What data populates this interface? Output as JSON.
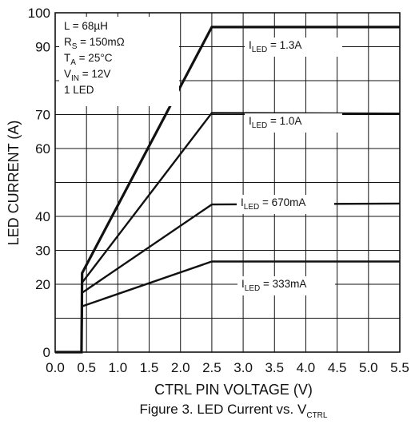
{
  "chart_data": {
    "type": "line",
    "title": "",
    "caption": {
      "main": "Figure 3. LED Current vs. V",
      "sub": "CTRL"
    },
    "xlabel": "CTRL PIN VOLTAGE (V)",
    "ylabel": "LED CURRENT (A)",
    "xlim": [
      0,
      5.5
    ],
    "ylim": [
      0,
      100
    ],
    "xticks": [
      0.0,
      0.5,
      1.0,
      1.5,
      2.0,
      2.5,
      3.0,
      3.5,
      4.0,
      4.5,
      5.0,
      5.5
    ],
    "yticks": [
      0,
      10,
      20,
      30,
      40,
      50,
      60,
      70,
      80,
      90,
      100
    ],
    "xtick_labels": [
      "0.0",
      "0.5",
      "1.0",
      "1.5",
      "2.0",
      "2.5",
      "3.0",
      "3.5",
      "4.0",
      "4.5",
      "5.0",
      "5.5"
    ],
    "ytick_labels": [
      "0",
      "",
      "20",
      "30",
      "40",
      "",
      "60",
      "70",
      "",
      "90",
      "100"
    ],
    "grid": true,
    "conditions": [
      {
        "main": "L = 68µH",
        "sub": "",
        "rest": ""
      },
      {
        "main": "R",
        "sub": "S",
        "rest": " = 150mΩ"
      },
      {
        "main": "T",
        "sub": "A",
        "rest": " = 25°C"
      },
      {
        "main": "V",
        "sub": "IN",
        "rest": " = 12V"
      },
      {
        "main": "1 LED",
        "sub": "",
        "rest": ""
      }
    ],
    "series": [
      {
        "main": "I",
        "sub": "LED",
        "rest": " = 1.3A",
        "x": [
          0,
          0.42,
          0.43,
          2.5,
          5.5
        ],
        "y": [
          0,
          0,
          23.3,
          95.8,
          95.8
        ]
      },
      {
        "main": "I",
        "sub": "LED",
        "rest": " = 1.0A",
        "x": [
          0,
          0.42,
          0.43,
          2.5,
          5.5
        ],
        "y": [
          0,
          0,
          20.5,
          70.5,
          70.3
        ]
      },
      {
        "main": "I",
        "sub": "LED",
        "rest": " = 670mA",
        "x": [
          0,
          0.42,
          0.43,
          2.5,
          5.5
        ],
        "y": [
          0,
          0,
          17.5,
          43.5,
          43.8
        ]
      },
      {
        "main": "I",
        "sub": "LED",
        "rest": " = 333mA",
        "x": [
          0,
          0.42,
          0.43,
          2.5,
          5.5
        ],
        "y": [
          0,
          0,
          13.5,
          26.7,
          26.7
        ]
      }
    ]
  }
}
